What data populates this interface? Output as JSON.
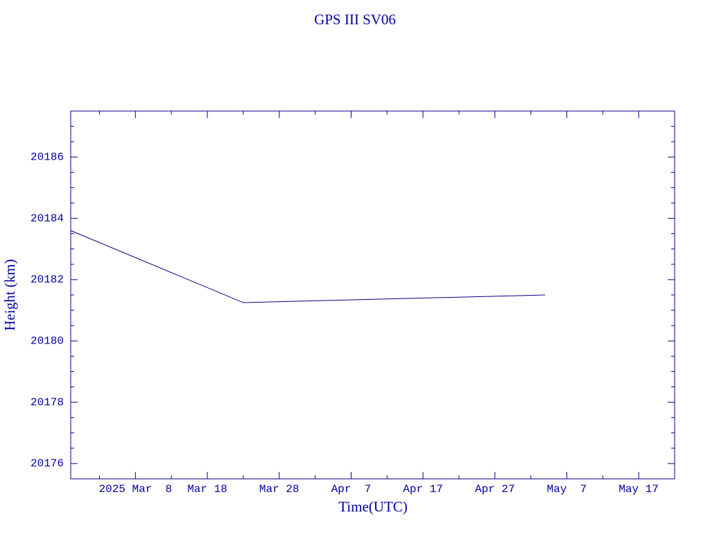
{
  "chart_data": {
    "type": "line",
    "title": "GPS III SV06",
    "xlabel": "Time(UTC)",
    "ylabel": "Height (km)",
    "x": [
      "2025-02-27",
      "2025-03-23",
      "2025-05-04"
    ],
    "series": [
      {
        "name": "GPS III SV06",
        "color": "#000080",
        "values": [
          20183.6,
          20181.25,
          20181.5
        ]
      }
    ],
    "xlim": [
      "2025-02-27",
      "2025-05-22"
    ],
    "xticks": [
      {
        "value": "2025-03-08",
        "label": "2025 Mar  8"
      },
      {
        "value": "2025-03-18",
        "label": "Mar 18"
      },
      {
        "value": "2025-03-28",
        "label": "Mar 28"
      },
      {
        "value": "2025-04-07",
        "label": "Apr  7"
      },
      {
        "value": "2025-04-17",
        "label": "Apr 17"
      },
      {
        "value": "2025-04-27",
        "label": "Apr 27"
      },
      {
        "value": "2025-05-07",
        "label": "May  7"
      },
      {
        "value": "2025-05-17",
        "label": "May 17"
      }
    ],
    "xminorticks": [
      "2025-03-03",
      "2025-03-13",
      "2025-03-23",
      "2025-04-02",
      "2025-04-12",
      "2025-04-22",
      "2025-05-02",
      "2025-05-12"
    ],
    "ylim": [
      20175.5,
      20187.5
    ],
    "yticks": [
      20176,
      20178,
      20180,
      20182,
      20184,
      20186
    ],
    "yminorticks": [
      20176.5,
      20177,
      20177.5,
      20178.5,
      20179,
      20179.5,
      20180.5,
      20181,
      20181.5,
      20182.5,
      20183,
      20183.5,
      20184.5,
      20185,
      20185.5,
      20186.5,
      20187
    ],
    "grid": false
  }
}
